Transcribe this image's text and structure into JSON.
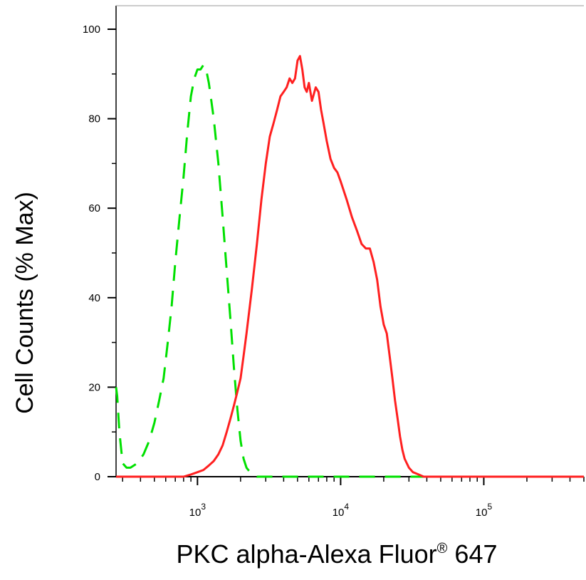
{
  "chart_data": {
    "type": "line",
    "xlabel": "PKC alpha-Alexa Fluor",
    "xlabel_mark": "®",
    "xlabel_suffix": " 647",
    "ylabel": "Cell Counts (% Max)",
    "xscale": "log",
    "xlim": [
      270,
      500000
    ],
    "ylim": [
      0,
      105
    ],
    "y_ticks": [
      0,
      20,
      40,
      60,
      80,
      100
    ],
    "x_ticks": [
      {
        "base": "10",
        "exp": "3",
        "value": 1000
      },
      {
        "base": "10",
        "exp": "4",
        "value": 10000
      },
      {
        "base": "10",
        "exp": "5",
        "value": 100000
      }
    ],
    "grid": false,
    "legend": "none",
    "series": [
      {
        "color": "#00e000",
        "style": "dashed",
        "x": [
          270,
          275,
          285,
          300,
          320,
          340,
          380,
          420,
          460,
          500,
          540,
          580,
          620,
          660,
          700,
          750,
          800,
          850,
          900,
          950,
          1000,
          1050,
          1100,
          1150,
          1200,
          1250,
          1300,
          1400,
          1500,
          1600,
          1700,
          1800,
          1900,
          2000,
          2100,
          2200,
          2400,
          2600,
          3000,
          4000,
          10000,
          100000,
          500000
        ],
        "y": [
          20,
          18,
          10,
          3,
          2,
          2,
          3,
          5,
          8,
          12,
          17,
          22,
          30,
          38,
          48,
          58,
          67,
          77,
          85,
          89,
          91,
          91,
          92,
          91,
          88,
          84,
          80,
          70,
          58,
          46,
          35,
          24,
          15,
          8,
          4,
          2,
          0.5,
          0,
          0,
          0,
          0,
          0,
          0
        ]
      },
      {
        "color": "#ff2020",
        "style": "solid",
        "x": [
          270,
          800,
          900,
          1000,
          1100,
          1200,
          1300,
          1400,
          1500,
          1600,
          1700,
          1800,
          1900,
          2000,
          2100,
          2200,
          2400,
          2600,
          2800,
          3000,
          3200,
          3400,
          3600,
          3800,
          4000,
          4200,
          4400,
          4600,
          4800,
          5000,
          5200,
          5400,
          5600,
          5800,
          6000,
          6300,
          6700,
          7000,
          7300,
          7600,
          8000,
          8500,
          9000,
          9500,
          10000,
          11000,
          12000,
          13000,
          14000,
          15000,
          16000,
          17000,
          18000,
          19000,
          20000,
          21000,
          22000,
          23000,
          24000,
          25000,
          26000,
          27000,
          28000,
          30000,
          32000,
          35000,
          38000,
          42000,
          46000,
          50000,
          55000,
          60000,
          70000,
          100000,
          500000
        ],
        "y": [
          0,
          0,
          0.5,
          1,
          1.5,
          2.5,
          3.5,
          5,
          7,
          10,
          13,
          16,
          19,
          22,
          27,
          32,
          42,
          52,
          62,
          70,
          76,
          79,
          82,
          85,
          86,
          87,
          89,
          88,
          89,
          93,
          94,
          91,
          87,
          86,
          88,
          84,
          87,
          86,
          82,
          79,
          75,
          71,
          69,
          68,
          66,
          62,
          58,
          55,
          52,
          51,
          51,
          48,
          44,
          38,
          34,
          32,
          27,
          22,
          17,
          13,
          9,
          6,
          4,
          2,
          1,
          0.5,
          0,
          0,
          0,
          0,
          0,
          0,
          0,
          0,
          0
        ]
      }
    ]
  }
}
